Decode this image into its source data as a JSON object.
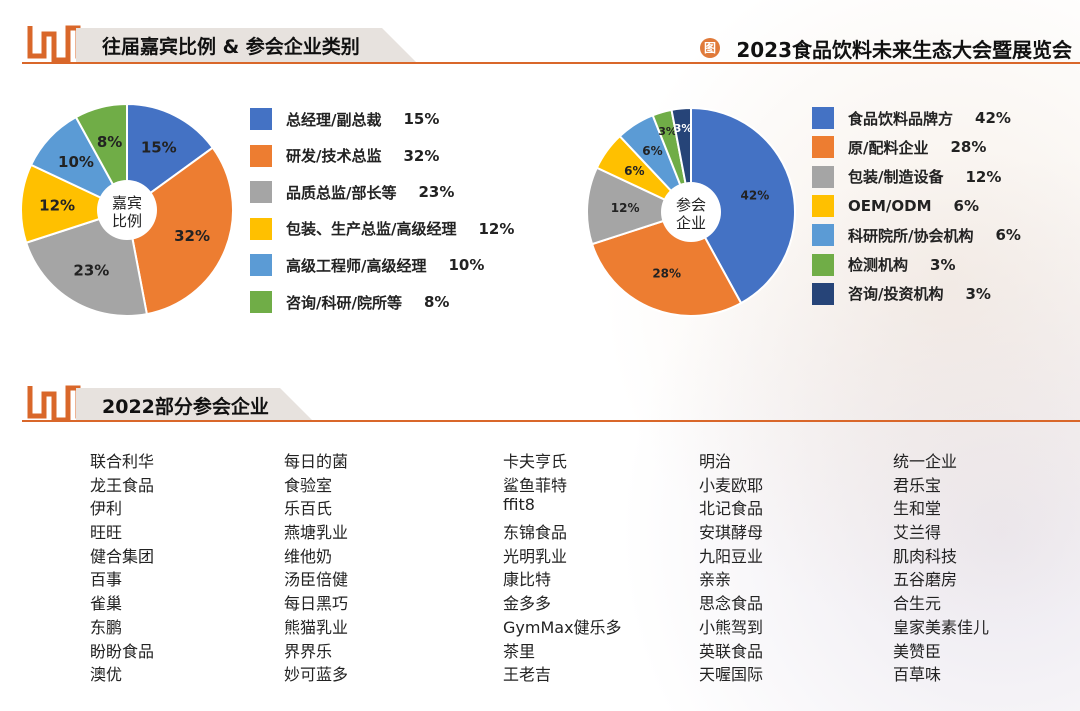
{
  "header": {
    "section1_title": "往届嘉宾比例 & 参会企业类别",
    "event_title": "2023食品饮料未来生态大会暨展览会",
    "event_icon": "图",
    "section2_title": "2022部分参会企业"
  },
  "colors": {
    "accent": "#d9672a",
    "band": "#e7e2de"
  },
  "chart_data": [
    {
      "type": "pie",
      "center_label": "嘉宾比例",
      "center_label_lines": [
        "嘉宾",
        "比例"
      ],
      "categories": [
        "总经理/副总裁",
        "研发/技术总监",
        "品质总监/部长等",
        "包装、生产总监/高级经理",
        "高级工程师/高级经理",
        "咨询/科研/院所等"
      ],
      "values": [
        15,
        32,
        23,
        12,
        10,
        8
      ],
      "labels": [
        "15%",
        "32%",
        "23%",
        "12%",
        "10%",
        "8%"
      ],
      "colors": [
        "#4472c4",
        "#ed7d31",
        "#a5a5a5",
        "#ffc000",
        "#5b9bd5",
        "#70ad47"
      ],
      "legend_position": "right"
    },
    {
      "type": "pie",
      "center_label": "参会企业",
      "center_label_lines": [
        "参会",
        "企业"
      ],
      "categories": [
        "食品饮料品牌方",
        "原/配料企业",
        "包装/制造设备",
        "OEM/ODM",
        "科研院所/协会机构",
        "检测机构",
        "咨询/投资机构"
      ],
      "values": [
        42,
        28,
        12,
        6,
        6,
        3,
        3
      ],
      "labels": [
        "42%",
        "28%",
        "12%",
        "6%",
        "6%",
        "3%",
        "3%"
      ],
      "colors": [
        "#4472c4",
        "#ed7d31",
        "#a5a5a5",
        "#ffc000",
        "#5b9bd5",
        "#70ad47",
        "#264478"
      ],
      "legend_position": "right"
    }
  ],
  "companies": [
    [
      "联合利华",
      "龙王食品",
      "伊利",
      "旺旺",
      "健合集团",
      "百事",
      "雀巢",
      "东鹏",
      "盼盼食品",
      "澳优"
    ],
    [
      "每日的菌",
      "食验室",
      "乐百氏",
      "燕塘乳业",
      "维他奶",
      "汤臣倍健",
      "每日黑巧",
      "熊猫乳业",
      "界界乐",
      "妙可蓝多"
    ],
    [
      "卡夫亨氏",
      "鲨鱼菲特",
      "ffit8",
      "东锦食品",
      "光明乳业",
      "康比特",
      "金多多",
      "GymMax健乐多",
      "茶里",
      "王老吉"
    ],
    [
      "明治",
      "小麦欧耶",
      "北记食品",
      "安琪酵母",
      "九阳豆业",
      "亲亲",
      "思念食品",
      "小熊驾到",
      "英联食品",
      "天喔国际"
    ],
    [
      "统一企业",
      "君乐宝",
      "生和堂",
      "艾兰得",
      "肌肉科技",
      "五谷磨房",
      "合生元",
      "皇家美素佳儿",
      "美赞臣",
      "百草味"
    ]
  ]
}
